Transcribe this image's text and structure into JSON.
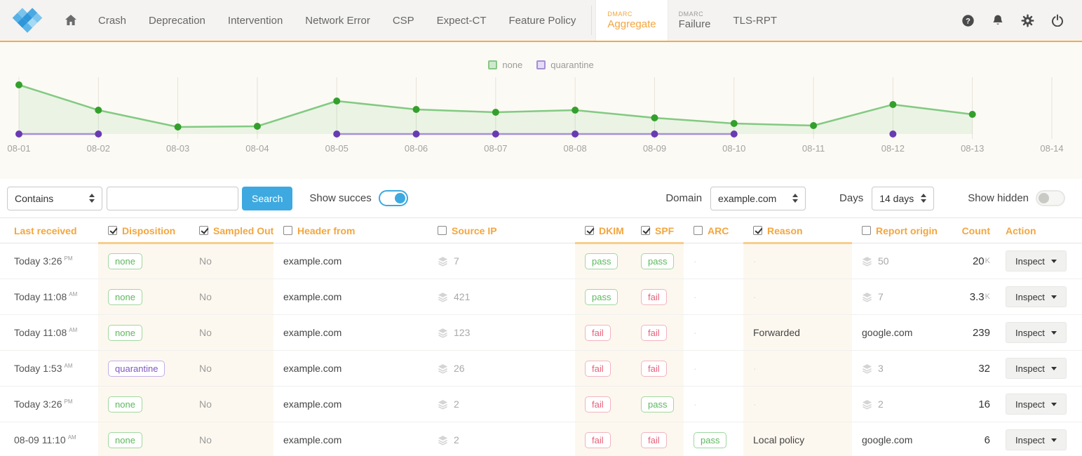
{
  "colors": {
    "accent_orange": "#f3a63f",
    "blue": "#3da9e0",
    "green": "#5cb85c",
    "red": "#e6607a",
    "purple": "#7e57c2"
  },
  "nav": {
    "items": [
      "Crash",
      "Deprecation",
      "Intervention",
      "Network Error",
      "CSP",
      "Expect-CT",
      "Feature Policy"
    ],
    "tabs": [
      {
        "sup": "DMARC",
        "label": "Aggregate",
        "active": true
      },
      {
        "sup": "DMARC",
        "label": "Failure",
        "active": false
      }
    ],
    "tls_item": "TLS-RPT",
    "right_icons": [
      "help-icon",
      "bell-icon",
      "gear-icon",
      "power-icon"
    ]
  },
  "chart_data": {
    "type": "line",
    "title": "",
    "x": [
      "08-01",
      "08-02",
      "08-03",
      "08-04",
      "08-05",
      "08-06",
      "08-07",
      "08-08",
      "08-09",
      "08-10",
      "08-11",
      "08-12",
      "08-13",
      "08-14"
    ],
    "series": [
      {
        "name": "none",
        "color": "#5cb85c",
        "values": [
          70,
          34,
          10,
          11,
          47,
          35,
          31,
          34,
          23,
          15,
          12,
          42,
          28,
          null
        ]
      },
      {
        "name": "quarantine",
        "color": "#7e57c2",
        "values": [
          0,
          0,
          null,
          null,
          0,
          0,
          0,
          0,
          0,
          0,
          null,
          0,
          null,
          null
        ]
      }
    ],
    "xlabel": "",
    "ylabel": "",
    "y_axis": "hidden",
    "grid": "vertical-only",
    "legend_position": "top-center"
  },
  "filter_bar": {
    "match_select_value": "Contains",
    "search_value": "",
    "search_button": "Search",
    "show_success_label": "Show succes",
    "show_success_on": true,
    "domain_label": "Domain",
    "domain_value": "example.com",
    "days_label": "Days",
    "days_value": "14 days",
    "show_hidden_label": "Show hidden",
    "show_hidden_on": false
  },
  "table": {
    "columns": [
      {
        "key": "received",
        "label": "Last received",
        "checkbox": null
      },
      {
        "key": "disposition",
        "label": "Disposition",
        "checkbox": true
      },
      {
        "key": "sampled_out",
        "label": "Sampled Out",
        "checkbox": true
      },
      {
        "key": "header_from",
        "label": "Header from",
        "checkbox": false
      },
      {
        "key": "source_ip",
        "label": "Source IP",
        "checkbox": false
      },
      {
        "key": "dkim",
        "label": "DKIM",
        "checkbox": true
      },
      {
        "key": "spf",
        "label": "SPF",
        "checkbox": true
      },
      {
        "key": "arc",
        "label": "ARC",
        "checkbox": false
      },
      {
        "key": "reason",
        "label": "Reason",
        "checkbox": true
      },
      {
        "key": "report_origin",
        "label": "Report origin",
        "checkbox": false
      },
      {
        "key": "count",
        "label": "Count",
        "checkbox": null
      },
      {
        "key": "action",
        "label": "Action",
        "checkbox": null
      }
    ],
    "rows": [
      {
        "received": "Today 3:26",
        "meridiem": "PM",
        "disposition": "none",
        "sampled_out": "No",
        "header_from": "example.com",
        "source_ip": "7",
        "dkim": "pass",
        "spf": "pass",
        "arc": "",
        "reason": "",
        "report_origin": {
          "count": "50"
        },
        "count": "20",
        "count_suffix": "K",
        "action": "Inspect"
      },
      {
        "received": "Today 11:08",
        "meridiem": "AM",
        "disposition": "none",
        "sampled_out": "No",
        "header_from": "example.com",
        "source_ip": "421",
        "dkim": "pass",
        "spf": "fail",
        "arc": "",
        "reason": "",
        "report_origin": {
          "count": "7"
        },
        "count": "3.3",
        "count_suffix": "K",
        "action": "Inspect"
      },
      {
        "received": "Today 11:08",
        "meridiem": "AM",
        "disposition": "none",
        "sampled_out": "No",
        "header_from": "example.com",
        "source_ip": "123",
        "dkim": "fail",
        "spf": "fail",
        "arc": "",
        "reason": "Forwarded",
        "report_origin": {
          "text": "google.com"
        },
        "count": "239",
        "count_suffix": "",
        "action": "Inspect"
      },
      {
        "received": "Today 1:53",
        "meridiem": "AM",
        "disposition": "quarantine",
        "sampled_out": "No",
        "header_from": "example.com",
        "source_ip": "26",
        "dkim": "fail",
        "spf": "fail",
        "arc": "",
        "reason": "",
        "report_origin": {
          "count": "3"
        },
        "count": "32",
        "count_suffix": "",
        "action": "Inspect"
      },
      {
        "received": "Today 3:26",
        "meridiem": "PM",
        "disposition": "none",
        "sampled_out": "No",
        "header_from": "example.com",
        "source_ip": "2",
        "dkim": "fail",
        "spf": "pass",
        "arc": "",
        "reason": "",
        "report_origin": {
          "count": "2"
        },
        "count": "16",
        "count_suffix": "",
        "action": "Inspect"
      },
      {
        "received": "08-09 11:10",
        "meridiem": "AM",
        "disposition": "none",
        "sampled_out": "No",
        "header_from": "example.com",
        "source_ip": "2",
        "dkim": "fail",
        "spf": "fail",
        "arc": "pass",
        "reason": "Local policy",
        "report_origin": {
          "text": "google.com"
        },
        "count": "6",
        "count_suffix": "",
        "action": "Inspect"
      }
    ]
  }
}
